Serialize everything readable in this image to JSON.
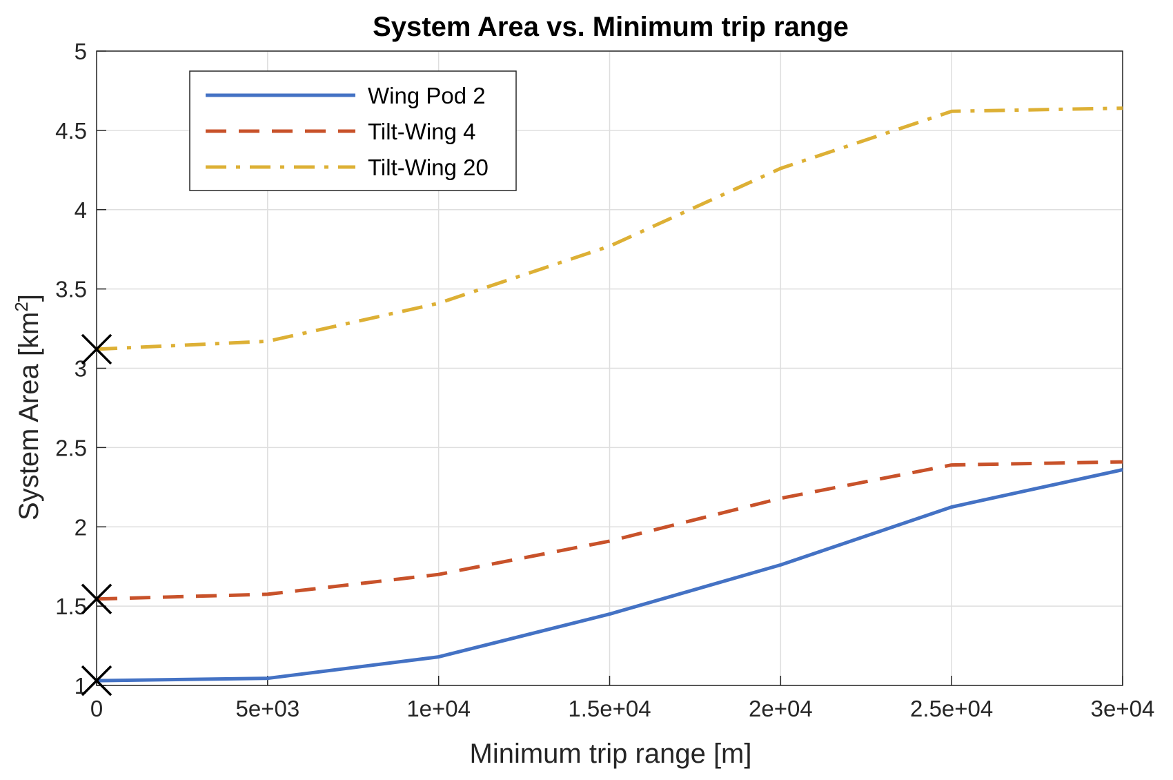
{
  "chart_data": {
    "type": "line",
    "title": "System Area vs. Minimum trip range",
    "xlabel": "Minimum trip range [m]",
    "ylabel": "System Area [km",
    "ylabel_superscript": "2",
    "ylabel_suffix": "]",
    "xlim": [
      0,
      30000
    ],
    "ylim": [
      1,
      5
    ],
    "xticks": [
      0,
      5000,
      10000,
      15000,
      20000,
      25000,
      30000
    ],
    "xtick_labels": [
      "0",
      "5e+03",
      "1e+04",
      "1.5e+04",
      "2e+04",
      "2.5e+04",
      "3e+04"
    ],
    "yticks": [
      1,
      1.5,
      2,
      2.5,
      3,
      3.5,
      4,
      4.5,
      5
    ],
    "ytick_labels": [
      "1",
      "1.5",
      "2",
      "2.5",
      "3",
      "3.5",
      "4",
      "4.5",
      "5"
    ],
    "grid": true,
    "legend_position": "top-left",
    "x": [
      0,
      5000,
      10000,
      15000,
      20000,
      25000,
      30000
    ],
    "series": [
      {
        "name": "Wing Pod 2",
        "values": [
          1.03,
          1.045,
          1.18,
          1.45,
          1.76,
          2.125,
          2.36
        ],
        "color": "#4472c4",
        "dash": "solid"
      },
      {
        "name": "Tilt-Wing 4",
        "values": [
          1.545,
          1.575,
          1.7,
          1.91,
          2.18,
          2.39,
          2.41
        ],
        "color": "#c8522a",
        "dash": "dashed"
      },
      {
        "name": "Tilt-Wing 20",
        "values": [
          3.12,
          3.17,
          3.41,
          3.77,
          4.26,
          4.62,
          4.64
        ],
        "color": "#ddb035",
        "dash": "dashdot"
      }
    ],
    "markers": [
      {
        "x": 0,
        "y": 1.03,
        "symbol": "x"
      },
      {
        "x": 0,
        "y": 1.545,
        "symbol": "x"
      },
      {
        "x": 0,
        "y": 3.12,
        "symbol": "x"
      }
    ]
  }
}
